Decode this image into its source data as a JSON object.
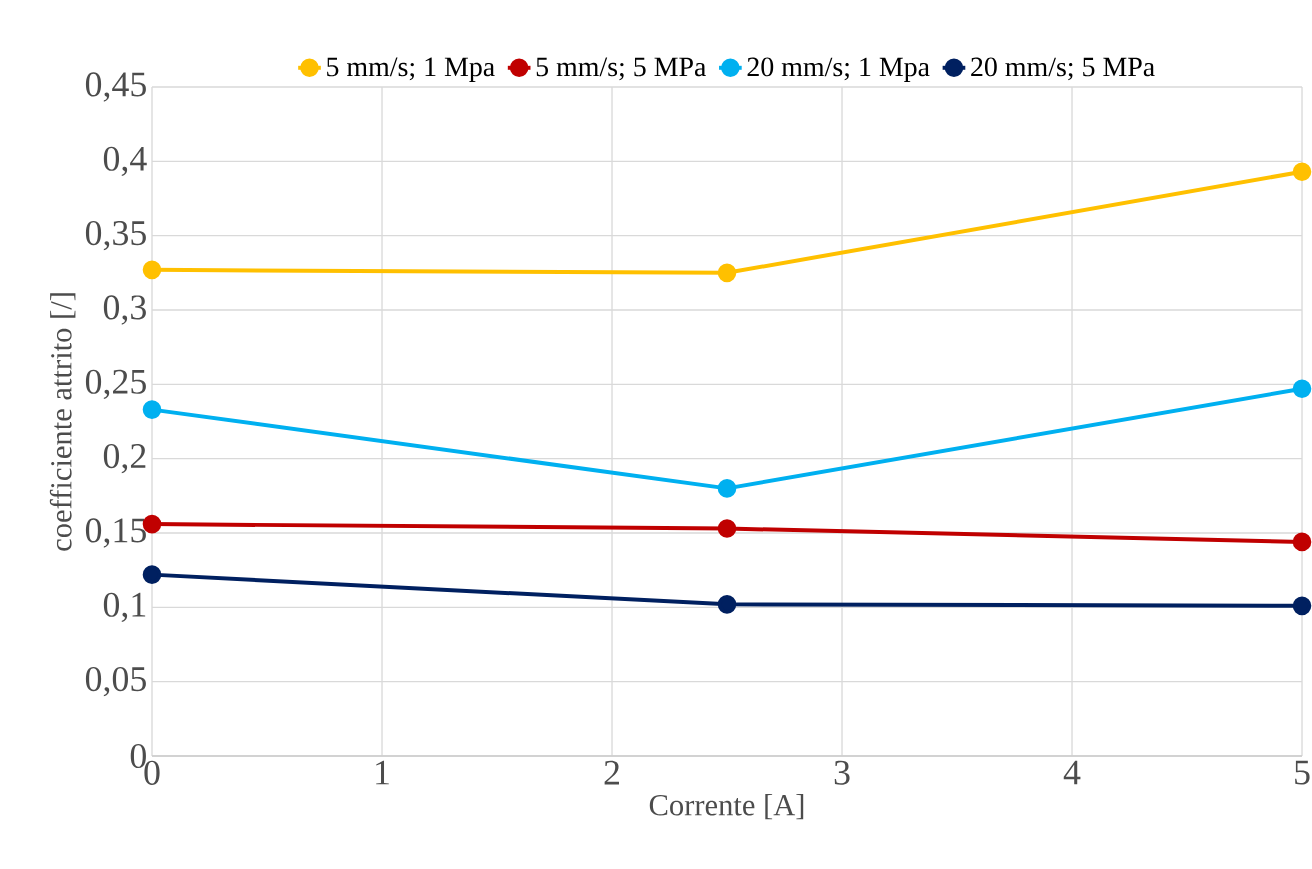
{
  "chart_data": {
    "type": "line",
    "xlabel": "Corrente [A]",
    "ylabel": "coefficiente attrito [/]",
    "x": [
      0,
      2.5,
      5
    ],
    "series": [
      {
        "name": "5 mm/s; 1 Mpa",
        "color": "#ffc000",
        "values": [
          0.327,
          0.325,
          0.393
        ]
      },
      {
        "name": "5 mm/s; 5 MPa",
        "color": "#c00000",
        "values": [
          0.156,
          0.153,
          0.144
        ]
      },
      {
        "name": "20 mm/s; 1 Mpa",
        "color": "#00b0f0",
        "values": [
          0.233,
          0.18,
          0.247
        ]
      },
      {
        "name": "20 mm/s; 5 MPa",
        "color": "#002060",
        "values": [
          0.122,
          0.102,
          0.101
        ]
      }
    ],
    "xlim": [
      0,
      5
    ],
    "xticks": [
      0,
      1,
      2,
      3,
      4,
      5
    ],
    "ylim": [
      0,
      0.45
    ],
    "yticks": [
      0,
      {
        "value": 0.05,
        "label": "0,05"
      },
      {
        "value": 0.1,
        "label": "0,1"
      },
      {
        "value": 0.15,
        "label": "0,15"
      },
      {
        "value": 0.2,
        "label": "0,2"
      },
      {
        "value": 0.25,
        "label": "0,25"
      },
      {
        "value": 0.3,
        "label": "0,3"
      },
      {
        "value": 0.35,
        "label": "0,35"
      },
      {
        "value": 0.4,
        "label": "0,4"
      },
      {
        "value": 0.45,
        "label": "0,45"
      }
    ],
    "grid": true,
    "legend": "top",
    "marker": "circle",
    "line_style": "solid"
  }
}
